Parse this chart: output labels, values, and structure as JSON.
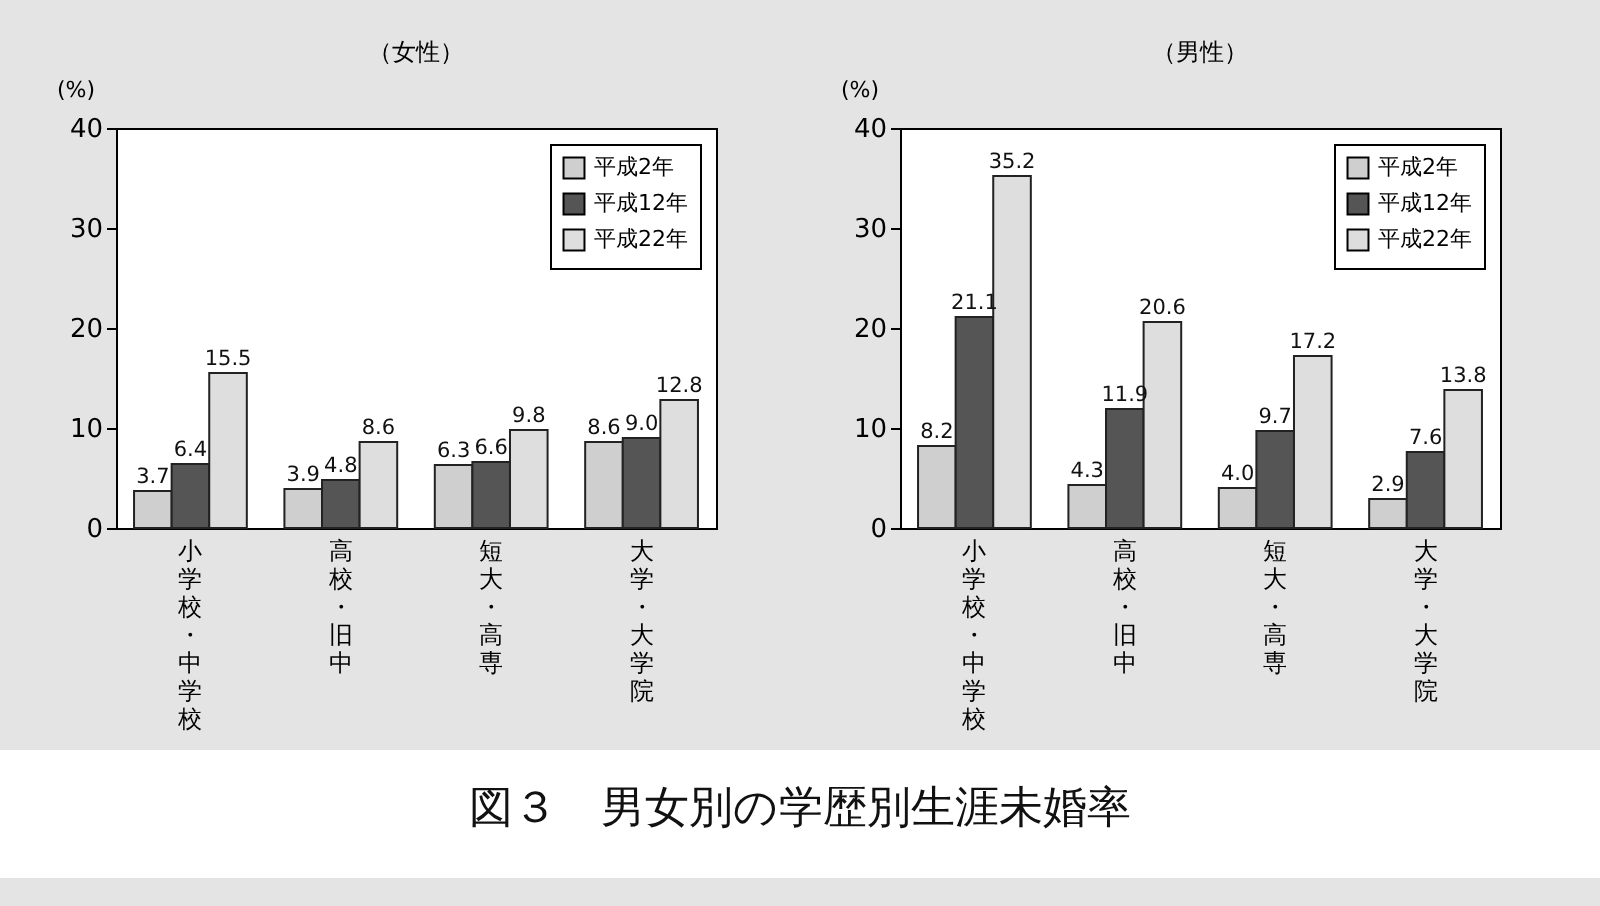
{
  "chart_data": [
    {
      "type": "bar",
      "title": "（女性）",
      "ylabel": "(%)",
      "categories": [
        "小学校・中学校",
        "高校・旧中",
        "短大・高専",
        "大学・大学院"
      ],
      "series": [
        {
          "name": "平成2年",
          "color": "#cfcfcf",
          "values": [
            3.7,
            3.9,
            6.3,
            8.6
          ],
          "value_labels": [
            "3.7",
            "3.9",
            "6.3",
            "8.6"
          ]
        },
        {
          "name": "平成12年",
          "color": "#555555",
          "values": [
            6.4,
            4.8,
            6.6,
            9.0
          ],
          "value_labels": [
            "6.4",
            "4.8",
            "6.6",
            "9.0"
          ]
        },
        {
          "name": "平成22年",
          "color": "#dedede",
          "values": [
            15.5,
            8.6,
            9.8,
            12.8
          ],
          "value_labels": [
            "15.5",
            "8.6",
            "9.8",
            "12.8"
          ]
        }
      ],
      "ylim": [
        0,
        40
      ],
      "yticks": [
        0,
        10,
        20,
        30,
        40
      ],
      "grid": false,
      "legend": "top right",
      "annotations": [
        "図３　男女別の学歴別生涯未婚率"
      ]
    },
    {
      "type": "bar",
      "title": "（男性）",
      "ylabel": "(%)",
      "categories": [
        "小学校・中学校",
        "高校・旧中",
        "短大・高専",
        "大学・大学院"
      ],
      "series": [
        {
          "name": "平成2年",
          "color": "#cfcfcf",
          "values": [
            8.2,
            4.3,
            4.0,
            2.9
          ],
          "value_labels": [
            "8.2",
            "4.3",
            "4.0",
            "2.9"
          ]
        },
        {
          "name": "平成12年",
          "color": "#555555",
          "values": [
            21.1,
            11.9,
            9.7,
            7.6
          ],
          "value_labels": [
            "21.1",
            "11.9",
            "9.7",
            "7.6"
          ]
        },
        {
          "name": "平成22年",
          "color": "#dedede",
          "values": [
            35.2,
            20.6,
            17.2,
            13.8
          ],
          "value_labels": [
            "35.2",
            "20.6",
            "17.2",
            "13.8"
          ]
        }
      ],
      "ylim": [
        0,
        40
      ],
      "yticks": [
        0,
        10,
        20,
        30,
        40
      ],
      "grid": false,
      "legend": "top right"
    }
  ]
}
